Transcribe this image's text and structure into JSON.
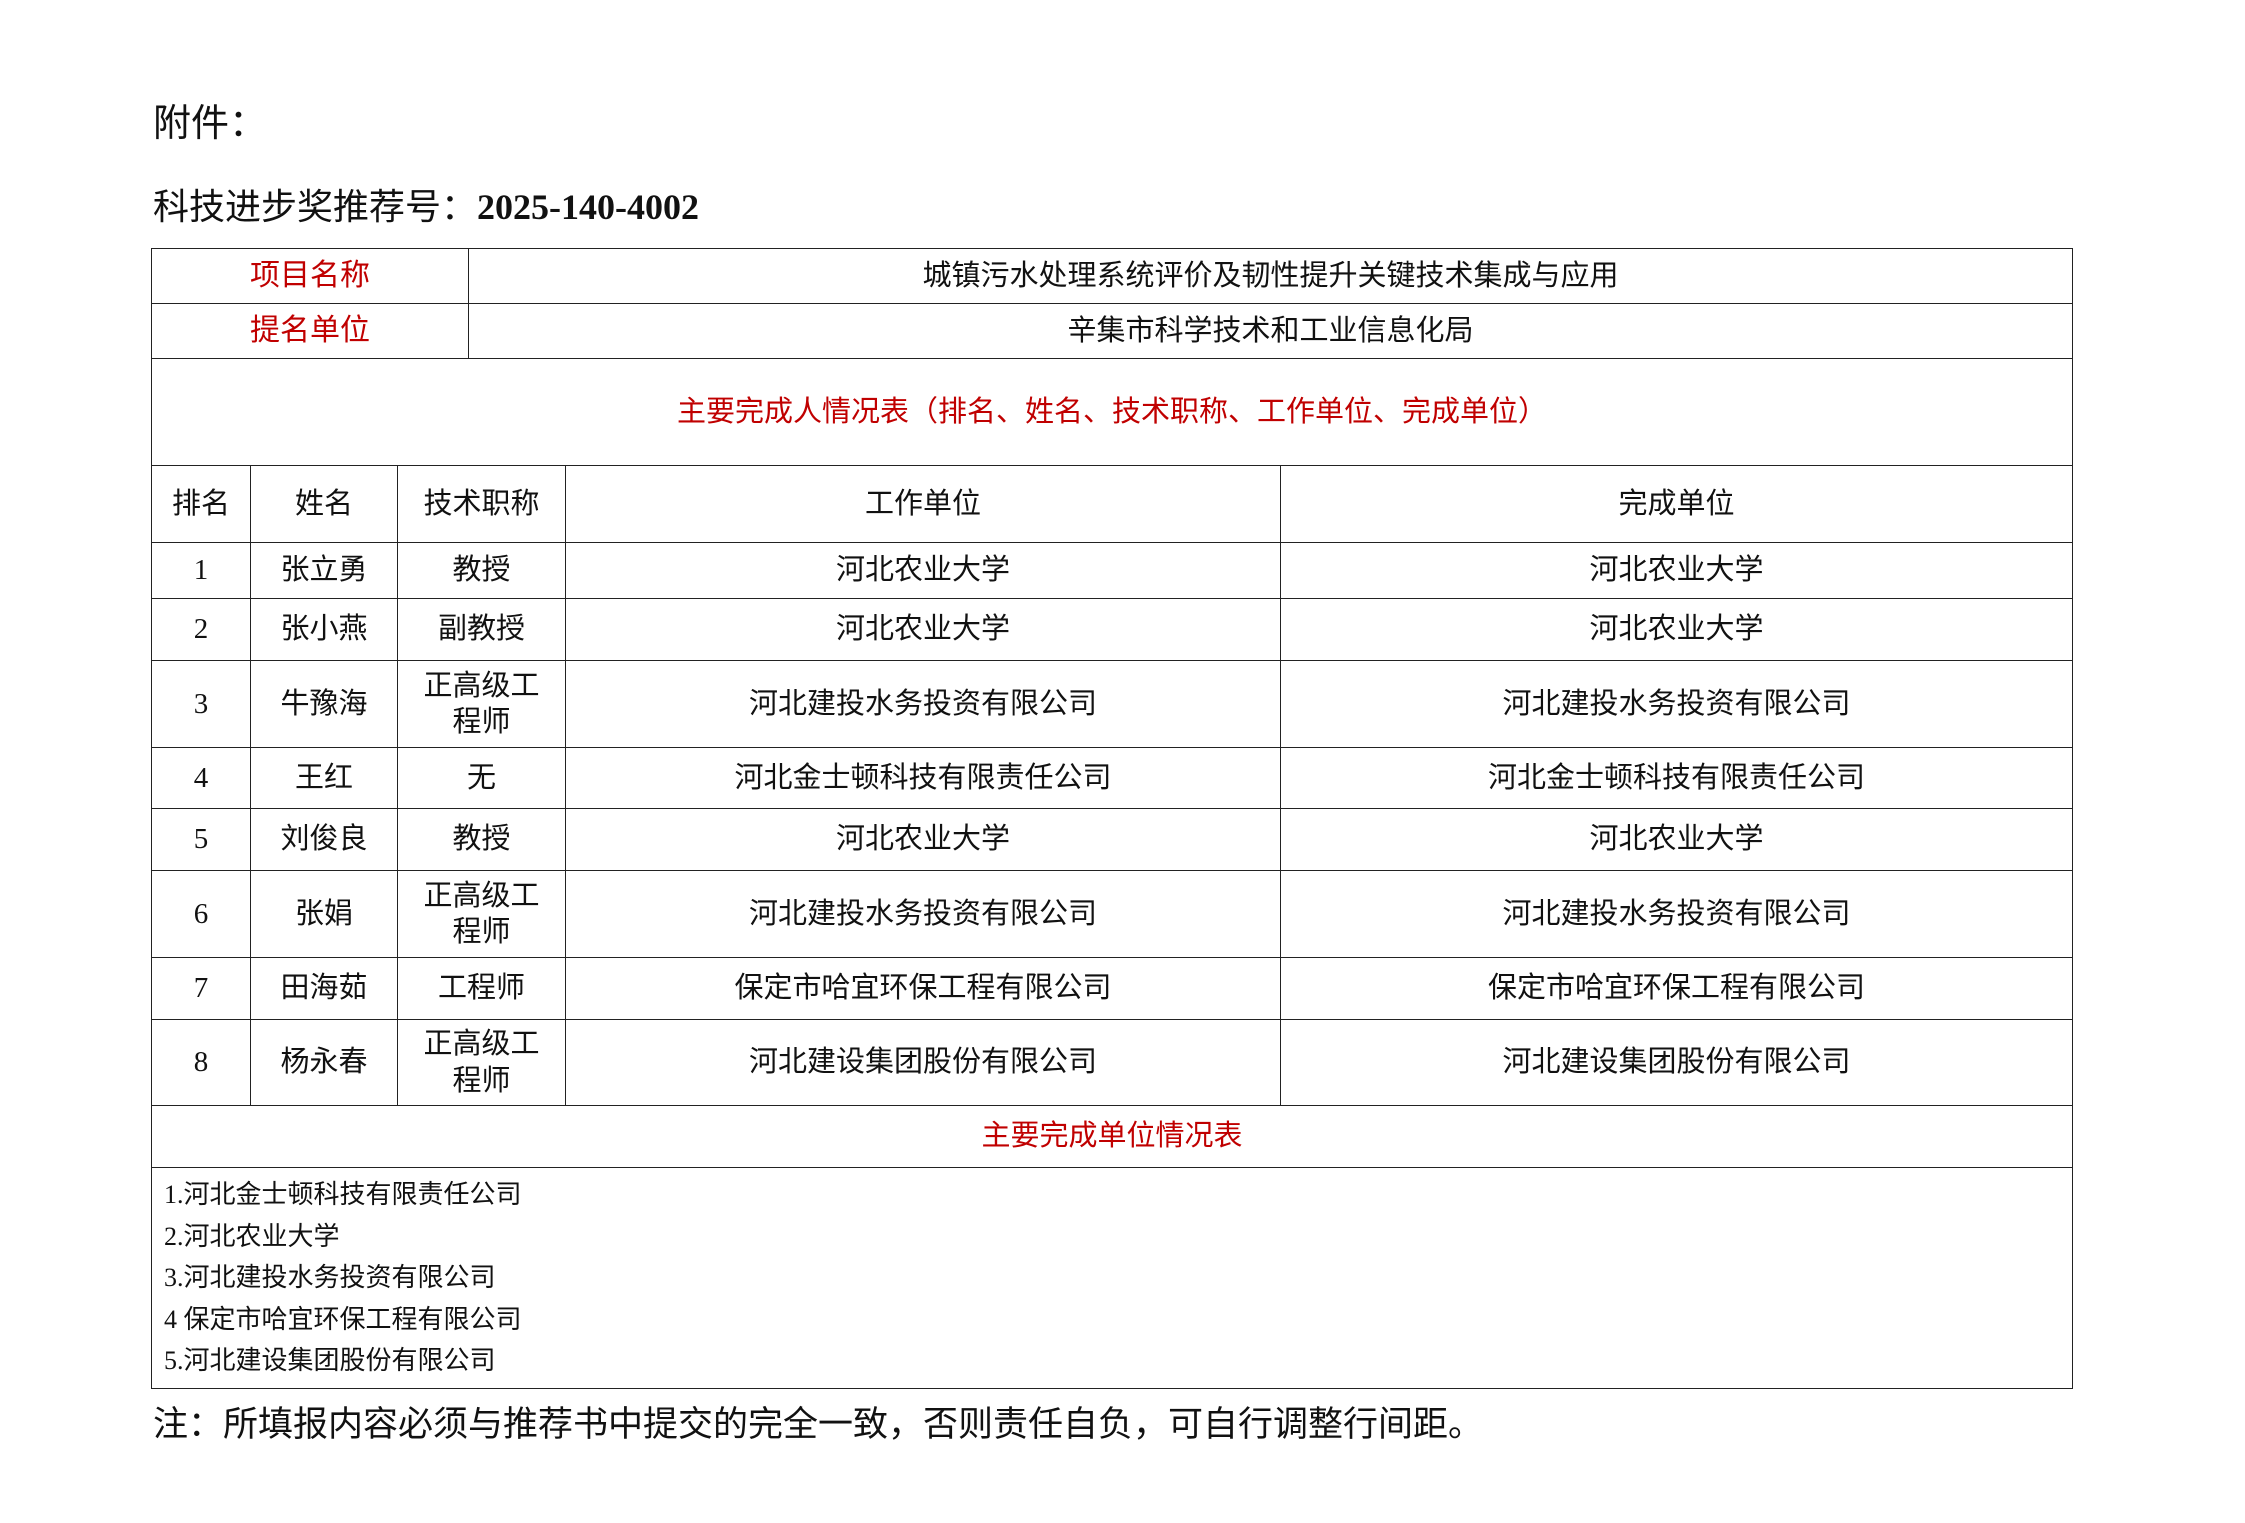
{
  "attachment_label": "附件：",
  "recommendation": {
    "label": "科技进步奖推荐号：",
    "number": "2025-140-4002"
  },
  "project": {
    "name_label": "项目名称",
    "name_value": "城镇污水处理系统评价及韧性提升关键技术集成与应用",
    "nominator_label": "提名单位",
    "nominator_value": "辛集市科学技术和工业信息化局"
  },
  "persons_table": {
    "title": "主要完成人情况表（排名、姓名、技术职称、工作单位、完成单位）",
    "headers": [
      "排名",
      "姓名",
      "技术职称",
      "工作单位",
      "完成单位"
    ],
    "rows": [
      [
        "1",
        "张立勇",
        "教授",
        "河北农业大学",
        "河北农业大学"
      ],
      [
        "2",
        "张小燕",
        "副教授",
        "河北农业大学",
        "河北农业大学"
      ],
      [
        "3",
        "牛豫海",
        "正高级工程师",
        "河北建投水务投资有限公司",
        "河北建投水务投资有限公司"
      ],
      [
        "4",
        "王红",
        "无",
        "河北金士顿科技有限责任公司",
        "河北金士顿科技有限责任公司"
      ],
      [
        "5",
        "刘俊良",
        "教授",
        "河北农业大学",
        "河北农业大学"
      ],
      [
        "6",
        "张娟",
        "正高级工程师",
        "河北建投水务投资有限公司",
        "河北建投水务投资有限公司"
      ],
      [
        "7",
        "田海茹",
        "工程师",
        "保定市哈宜环保工程有限公司",
        "保定市哈宜环保工程有限公司"
      ],
      [
        "8",
        "杨永春",
        "正高级工程师",
        "河北建设集团股份有限公司",
        "河北建设集团股份有限公司"
      ]
    ]
  },
  "units_table": {
    "title": "主要完成单位情况表",
    "items": [
      "1.河北金士顿科技有限责任公司",
      "2.河北农业大学",
      "3.河北建投水务投资有限公司",
      "4 保定市哈宜环保工程有限公司",
      "5.河北建设集团股份有限公司"
    ]
  },
  "note": "注：所填报内容必须与推荐书中提交的完全一致，否则责任自负，可自行调整行间距。",
  "colors": {
    "label_red": "#c00000",
    "text": "#111111"
  }
}
